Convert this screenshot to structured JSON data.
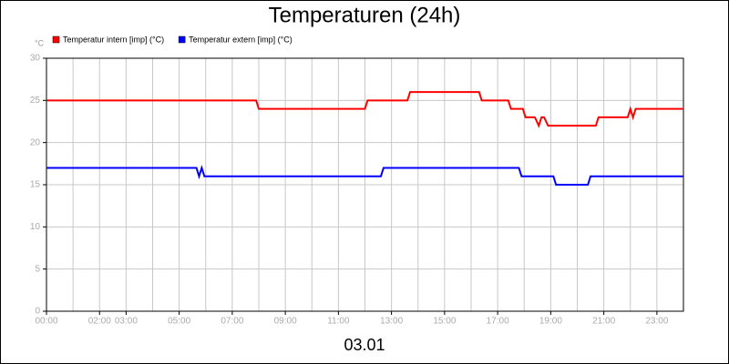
{
  "chart_data": {
    "type": "line",
    "title": "Temperaturen (24h)",
    "y_label": "°C",
    "x_label": "03.01",
    "series": [
      {
        "name": "Temperatur intern [imp] (°C)",
        "color": "#ff0000",
        "x": [
          0,
          7.9,
          8.0,
          12.0,
          12.1,
          13.6,
          13.7,
          16.3,
          16.4,
          17.4,
          17.5,
          17.95,
          18.05,
          18.4,
          18.55,
          18.65,
          18.75,
          18.9,
          20.7,
          20.8,
          21.9,
          22.0,
          22.1,
          22.2,
          24
        ],
        "values": [
          25,
          25,
          24,
          24,
          25,
          25,
          26,
          26,
          25,
          25,
          24,
          24,
          23,
          23,
          22,
          23,
          23,
          22,
          22,
          23,
          23,
          24,
          23,
          24,
          24
        ]
      },
      {
        "name": "Temperatur extern [imp] (°C)",
        "color": "#0000ff",
        "x": [
          0,
          5.65,
          5.75,
          5.85,
          5.95,
          12.6,
          12.7,
          17.8,
          17.9,
          19.1,
          19.2,
          20.4,
          20.5,
          24
        ],
        "values": [
          17,
          17,
          16,
          17,
          16,
          16,
          17,
          17,
          16,
          16,
          15,
          15,
          16,
          16
        ]
      }
    ],
    "xlim": [
      0,
      24
    ],
    "xticks": [
      {
        "value": 0,
        "label": "00:00"
      },
      {
        "value": 2,
        "label": "02:00"
      },
      {
        "value": 3,
        "label": "03:00"
      },
      {
        "value": 5,
        "label": "05:00"
      },
      {
        "value": 7,
        "label": "07:00"
      },
      {
        "value": 9,
        "label": "09:00"
      },
      {
        "value": 11,
        "label": "11:00"
      },
      {
        "value": 13,
        "label": "13:00"
      },
      {
        "value": 15,
        "label": "15:00"
      },
      {
        "value": 17,
        "label": "17:00"
      },
      {
        "value": 19,
        "label": "19:00"
      },
      {
        "value": 21,
        "label": "21:00"
      },
      {
        "value": 23,
        "label": "23:00"
      }
    ],
    "xgrid": [
      1,
      2,
      3,
      4,
      5,
      6,
      7,
      8,
      9,
      10,
      11,
      12,
      13,
      14,
      15,
      16,
      17,
      18,
      19,
      20,
      21,
      22,
      23
    ],
    "ylim": [
      0,
      30
    ],
    "yticks": [
      0,
      5,
      10,
      15,
      20,
      25,
      30
    ],
    "grid": true
  }
}
